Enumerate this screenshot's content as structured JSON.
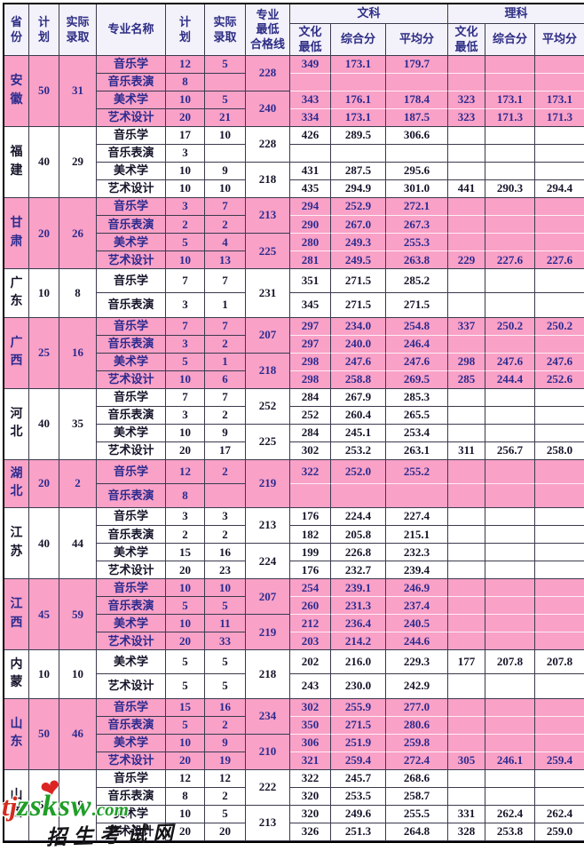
{
  "table": {
    "header": {
      "col_province": "省\n份",
      "col_plan": "计\n划",
      "col_actual": "实际\n录取",
      "col_major": "专业名称",
      "col_plan2": "计\n划",
      "col_actual2": "实际\n录取",
      "col_qual_line": "专业\n最低\n合格线",
      "group_arts": "文科",
      "group_science": "理科",
      "col_culture_min_arts": "文化\n最低",
      "col_composite_arts": "综合分",
      "col_average_arts": "平均分",
      "col_culture_min_sci": "文化\n最低",
      "col_composite_sci": "综合分",
      "col_average_sci": "平均分"
    },
    "groups": [
      {
        "province": "安徽",
        "pink": true,
        "plan": "50",
        "actual": "31",
        "qual": [
          "228",
          "240"
        ],
        "rows": [
          [
            "音乐学",
            "12",
            "5",
            "349",
            "173.1",
            "179.7",
            "",
            "",
            ""
          ],
          [
            "音乐表演",
            "8",
            "",
            "",
            "",
            "",
            "",
            "",
            ""
          ],
          [
            "美术学",
            "10",
            "5",
            "343",
            "176.1",
            "178.4",
            "323",
            "173.1",
            "173.1"
          ],
          [
            "艺术设计",
            "20",
            "21",
            "334",
            "173.1",
            "187.5",
            "323",
            "171.3",
            "171.3"
          ]
        ]
      },
      {
        "province": "福建",
        "pink": false,
        "plan": "40",
        "actual": "29",
        "qual": [
          "228",
          "218"
        ],
        "rows": [
          [
            "音乐学",
            "17",
            "10",
            "426",
            "289.5",
            "306.6",
            "",
            "",
            ""
          ],
          [
            "音乐表演",
            "3",
            "",
            "",
            "",
            "",
            "",
            "",
            ""
          ],
          [
            "美术学",
            "10",
            "9",
            "431",
            "287.5",
            "295.6",
            "",
            "",
            ""
          ],
          [
            "艺术设计",
            "10",
            "10",
            "435",
            "294.9",
            "301.0",
            "441",
            "290.3",
            "294.4"
          ]
        ]
      },
      {
        "province": "甘肃",
        "pink": true,
        "plan": "20",
        "actual": "26",
        "qual": [
          "213",
          "225"
        ],
        "rows": [
          [
            "音乐学",
            "3",
            "7",
            "294",
            "252.9",
            "272.1",
            "",
            "",
            ""
          ],
          [
            "音乐表演",
            "2",
            "2",
            "290",
            "267.0",
            "267.3",
            "",
            "",
            ""
          ],
          [
            "美术学",
            "5",
            "4",
            "280",
            "249.3",
            "255.3",
            "",
            "",
            ""
          ],
          [
            "艺术设计",
            "10",
            "13",
            "281",
            "249.5",
            "263.8",
            "229",
            "227.6",
            "227.6"
          ]
        ]
      },
      {
        "province": "广东",
        "pink": false,
        "plan": "10",
        "actual": "8",
        "qual": [
          "231"
        ],
        "rows": [
          [
            "音乐学",
            "7",
            "7",
            "351",
            "271.5",
            "285.2",
            "",
            "",
            ""
          ],
          [
            "音乐表演",
            "3",
            "1",
            "345",
            "271.5",
            "271.5",
            "",
            "",
            ""
          ]
        ]
      },
      {
        "province": "广西",
        "pink": true,
        "plan": "25",
        "actual": "16",
        "qual": [
          "207",
          "218"
        ],
        "rows": [
          [
            "音乐学",
            "7",
            "7",
            "297",
            "234.0",
            "254.8",
            "337",
            "250.2",
            "250.2"
          ],
          [
            "音乐表演",
            "3",
            "2",
            "297",
            "240.0",
            "246.4",
            "",
            "",
            ""
          ],
          [
            "美术学",
            "5",
            "1",
            "298",
            "247.6",
            "247.6",
            "298",
            "247.6",
            "247.6"
          ],
          [
            "艺术设计",
            "10",
            "6",
            "298",
            "258.8",
            "269.5",
            "285",
            "244.4",
            "252.6"
          ]
        ]
      },
      {
        "province": "河北",
        "pink": false,
        "plan": "40",
        "actual": "35",
        "qual": [
          "252",
          "225"
        ],
        "rows": [
          [
            "音乐学",
            "7",
            "7",
            "284",
            "267.9",
            "285.3",
            "",
            "",
            ""
          ],
          [
            "音乐表演",
            "3",
            "2",
            "252",
            "260.4",
            "265.5",
            "",
            "",
            ""
          ],
          [
            "美术学",
            "10",
            "9",
            "284",
            "245.1",
            "253.4",
            "",
            "",
            ""
          ],
          [
            "艺术设计",
            "20",
            "17",
            "302",
            "253.2",
            "263.1",
            "311",
            "256.7",
            "258.0"
          ]
        ]
      },
      {
        "province": "湖北",
        "pink": true,
        "plan": "20",
        "actual": "2",
        "qual": [
          "219"
        ],
        "rows": [
          [
            "音乐学",
            "12",
            "2",
            "322",
            "252.0",
            "255.2",
            "",
            "",
            ""
          ],
          [
            "音乐表演",
            "8",
            "",
            "",
            "",
            "",
            "",
            "",
            ""
          ]
        ]
      },
      {
        "province": "江苏",
        "pink": false,
        "plan": "40",
        "actual": "44",
        "qual": [
          "213",
          "224"
        ],
        "rows": [
          [
            "音乐学",
            "3",
            "3",
            "176",
            "224.4",
            "227.4",
            "",
            "",
            ""
          ],
          [
            "音乐表演",
            "2",
            "2",
            "182",
            "205.8",
            "215.1",
            "",
            "",
            ""
          ],
          [
            "美术学",
            "15",
            "16",
            "199",
            "226.8",
            "232.3",
            "",
            "",
            ""
          ],
          [
            "艺术设计",
            "20",
            "23",
            "176",
            "232.7",
            "239.4",
            "",
            "",
            ""
          ]
        ]
      },
      {
        "province": "江西",
        "pink": true,
        "plan": "45",
        "actual": "59",
        "qual": [
          "207",
          "219"
        ],
        "rows": [
          [
            "音乐学",
            "10",
            "10",
            "254",
            "239.1",
            "246.9",
            "",
            "",
            ""
          ],
          [
            "音乐表演",
            "5",
            "5",
            "260",
            "231.3",
            "237.4",
            "",
            "",
            ""
          ],
          [
            "美术学",
            "10",
            "11",
            "212",
            "236.4",
            "240.5",
            "",
            "",
            ""
          ],
          [
            "艺术设计",
            "20",
            "33",
            "203",
            "214.2",
            "244.6",
            "",
            "",
            ""
          ]
        ]
      },
      {
        "province": "内蒙",
        "pink": false,
        "plan": "10",
        "actual": "10",
        "qual": [
          "218"
        ],
        "rows": [
          [
            "美术学",
            "5",
            "5",
            "202",
            "216.0",
            "229.3",
            "177",
            "207.8",
            "207.8"
          ],
          [
            "艺术设计",
            "5",
            "5",
            "243",
            "230.0",
            "242.9",
            "",
            "",
            ""
          ]
        ]
      },
      {
        "province": "山东",
        "pink": true,
        "plan": "50",
        "actual": "46",
        "qual": [
          "234",
          "210"
        ],
        "rows": [
          [
            "音乐学",
            "15",
            "16",
            "302",
            "255.9",
            "277.0",
            "",
            "",
            ""
          ],
          [
            "音乐表演",
            "5",
            "2",
            "350",
            "271.5",
            "280.6",
            "",
            "",
            ""
          ],
          [
            "美术学",
            "10",
            "9",
            "306",
            "251.9",
            "259.8",
            "",
            "",
            ""
          ],
          [
            "艺术设计",
            "20",
            "19",
            "321",
            "259.4",
            "272.4",
            "305",
            "246.1",
            "259.4"
          ]
        ]
      },
      {
        "province": "山西",
        "pink": false,
        "plan": "50",
        "actual": "39",
        "qual": [
          "222",
          "213"
        ],
        "rows": [
          [
            "音乐学",
            "12",
            "12",
            "322",
            "245.7",
            "268.6",
            "",
            "",
            ""
          ],
          [
            "音乐表演",
            "8",
            "2",
            "320",
            "253.5",
            "258.7",
            "",
            "",
            ""
          ],
          [
            "美术学",
            "10",
            "5",
            "320",
            "249.6",
            "255.5",
            "331",
            "262.4",
            "262.4"
          ],
          [
            "艺术设计",
            "20",
            "20",
            "326",
            "251.3",
            "264.8",
            "328",
            "253.8",
            "259.0"
          ]
        ]
      }
    ]
  },
  "watermark": {
    "prefix": "tj",
    "site": "zsksw",
    "domain": ".com",
    "caption": "招生考试网",
    "heart_icon": "❤",
    "colors": {
      "prefix": "#d42a1e",
      "site": "#1f9e28",
      "caption": "#141418",
      "heart": "#dd2424"
    }
  },
  "palette": {
    "pink_row": "#f9a1c7",
    "header_bg": "#f3f1f9",
    "pink_text": "#2b2b8f",
    "white_row_text": "#15152a",
    "grid_line": "#3a3a4e"
  }
}
